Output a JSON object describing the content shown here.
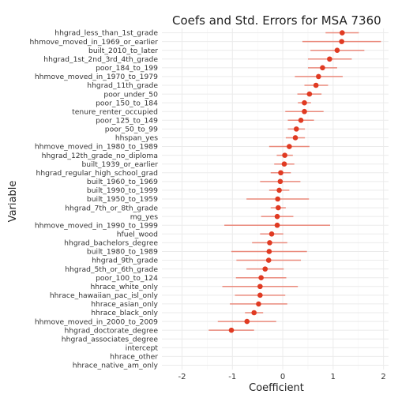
{
  "chart_data": {
    "type": "scatter",
    "title": "Coefs and Std. Errors for MSA 7360",
    "xlabel": "Coefficient",
    "ylabel": "Variable",
    "xlim": [
      -2.4,
      2.1
    ],
    "xticks": [
      -2,
      -1,
      0,
      1,
      2
    ],
    "grid": true,
    "colors": {
      "point": "#e03a22",
      "errorbar": "#ea8a7c"
    },
    "points": [
      {
        "variable": "hhgrad_less_than_1st_grade",
        "coef": 1.18,
        "low": 0.85,
        "high": 1.51
      },
      {
        "variable": "hhmove_moved_in_1969_or_earlier",
        "coef": 1.17,
        "low": 0.39,
        "high": 1.95
      },
      {
        "variable": "built_2010_to_later",
        "coef": 1.08,
        "low": 0.55,
        "high": 1.62
      },
      {
        "variable": "hhgrad_1st_2nd_3rd_4th_grade",
        "coef": 0.93,
        "low": 0.5,
        "high": 1.37
      },
      {
        "variable": "poor_184_to_199",
        "coef": 0.79,
        "low": 0.5,
        "high": 1.08
      },
      {
        "variable": "hhmove_moved_in_1970_to_1979",
        "coef": 0.71,
        "low": 0.24,
        "high": 1.19
      },
      {
        "variable": "hhgrad_11th_grade",
        "coef": 0.66,
        "low": 0.43,
        "high": 0.9
      },
      {
        "variable": "poor_under_50",
        "coef": 0.53,
        "low": 0.29,
        "high": 0.77
      },
      {
        "variable": "poor_150_to_184",
        "coef": 0.43,
        "low": 0.3,
        "high": 0.56
      },
      {
        "variable": "tenure_renter_occupied",
        "coef": 0.43,
        "low": 0.05,
        "high": 0.81
      },
      {
        "variable": "poor_125_to_149",
        "coef": 0.36,
        "low": 0.1,
        "high": 0.62
      },
      {
        "variable": "poor_50_to_99",
        "coef": 0.27,
        "low": 0.1,
        "high": 0.44
      },
      {
        "variable": "hhspan_yes",
        "coef": 0.25,
        "low": 0.06,
        "high": 0.44
      },
      {
        "variable": "hhmove_moved_in_1980_to_1989",
        "coef": 0.13,
        "low": -0.27,
        "high": 0.53
      },
      {
        "variable": "hhgrad_12th_grade_no_diploma",
        "coef": 0.04,
        "low": -0.12,
        "high": 0.2
      },
      {
        "variable": "built_1939_or_earlier",
        "coef": 0.03,
        "low": -0.17,
        "high": 0.23
      },
      {
        "variable": "hhgrad_regular_high_school_grad",
        "coef": -0.04,
        "low": -0.24,
        "high": 0.16
      },
      {
        "variable": "built_1960_to_1969",
        "coef": -0.05,
        "low": -0.45,
        "high": 0.35
      },
      {
        "variable": "built_1990_to_1999",
        "coef": -0.07,
        "low": -0.27,
        "high": 0.13
      },
      {
        "variable": "built_1950_to_1959",
        "coef": -0.1,
        "low": -0.72,
        "high": 0.52
      },
      {
        "variable": "hhgrad_7th_or_8th_grade",
        "coef": -0.09,
        "low": -0.24,
        "high": 0.06
      },
      {
        "variable": "mg_yes",
        "coef": -0.11,
        "low": -0.43,
        "high": 0.21
      },
      {
        "variable": "hhmove_moved_in_1990_to_1999",
        "coef": -0.11,
        "low": -1.16,
        "high": 0.94
      },
      {
        "variable": "hfuel_wood",
        "coef": -0.22,
        "low": -0.45,
        "high": 0.01
      },
      {
        "variable": "hhgrad_bachelors_degree",
        "coef": -0.26,
        "low": -0.61,
        "high": 0.09
      },
      {
        "variable": "built_1980_to_1989",
        "coef": -0.27,
        "low": -1.02,
        "high": 0.48
      },
      {
        "variable": "hhgrad_9th_grade",
        "coef": -0.28,
        "low": -0.92,
        "high": 0.36
      },
      {
        "variable": "hhgrad_5th_or_6th_grade",
        "coef": -0.35,
        "low": -0.72,
        "high": 0.02
      },
      {
        "variable": "poor_100_to_124",
        "coef": -0.43,
        "low": -0.93,
        "high": 0.07
      },
      {
        "variable": "hhrace_white_only",
        "coef": -0.45,
        "low": -1.2,
        "high": 0.3
      },
      {
        "variable": "hhrace_hawaiian_pac_isl_only",
        "coef": -0.45,
        "low": -0.95,
        "high": 0.05
      },
      {
        "variable": "hhrace_asian_only",
        "coef": -0.48,
        "low": -1.05,
        "high": 0.09
      },
      {
        "variable": "hhrace_black_only",
        "coef": -0.57,
        "low": -0.75,
        "high": -0.39
      },
      {
        "variable": "hhmove_moved_in_2000_to_2009",
        "coef": -0.71,
        "low": -1.29,
        "high": -0.13
      },
      {
        "variable": "hhgrad_doctorate_degree",
        "coef": -1.02,
        "low": -1.47,
        "high": -0.57
      },
      {
        "variable": "hhgrad_associates_degree",
        "coef": null,
        "low": null,
        "high": null
      },
      {
        "variable": "intercept",
        "coef": null,
        "low": null,
        "high": null
      },
      {
        "variable": "hhrace_other",
        "coef": null,
        "low": null,
        "high": null
      },
      {
        "variable": "hhrace_native_am_only",
        "coef": null,
        "low": null,
        "high": null
      }
    ]
  }
}
